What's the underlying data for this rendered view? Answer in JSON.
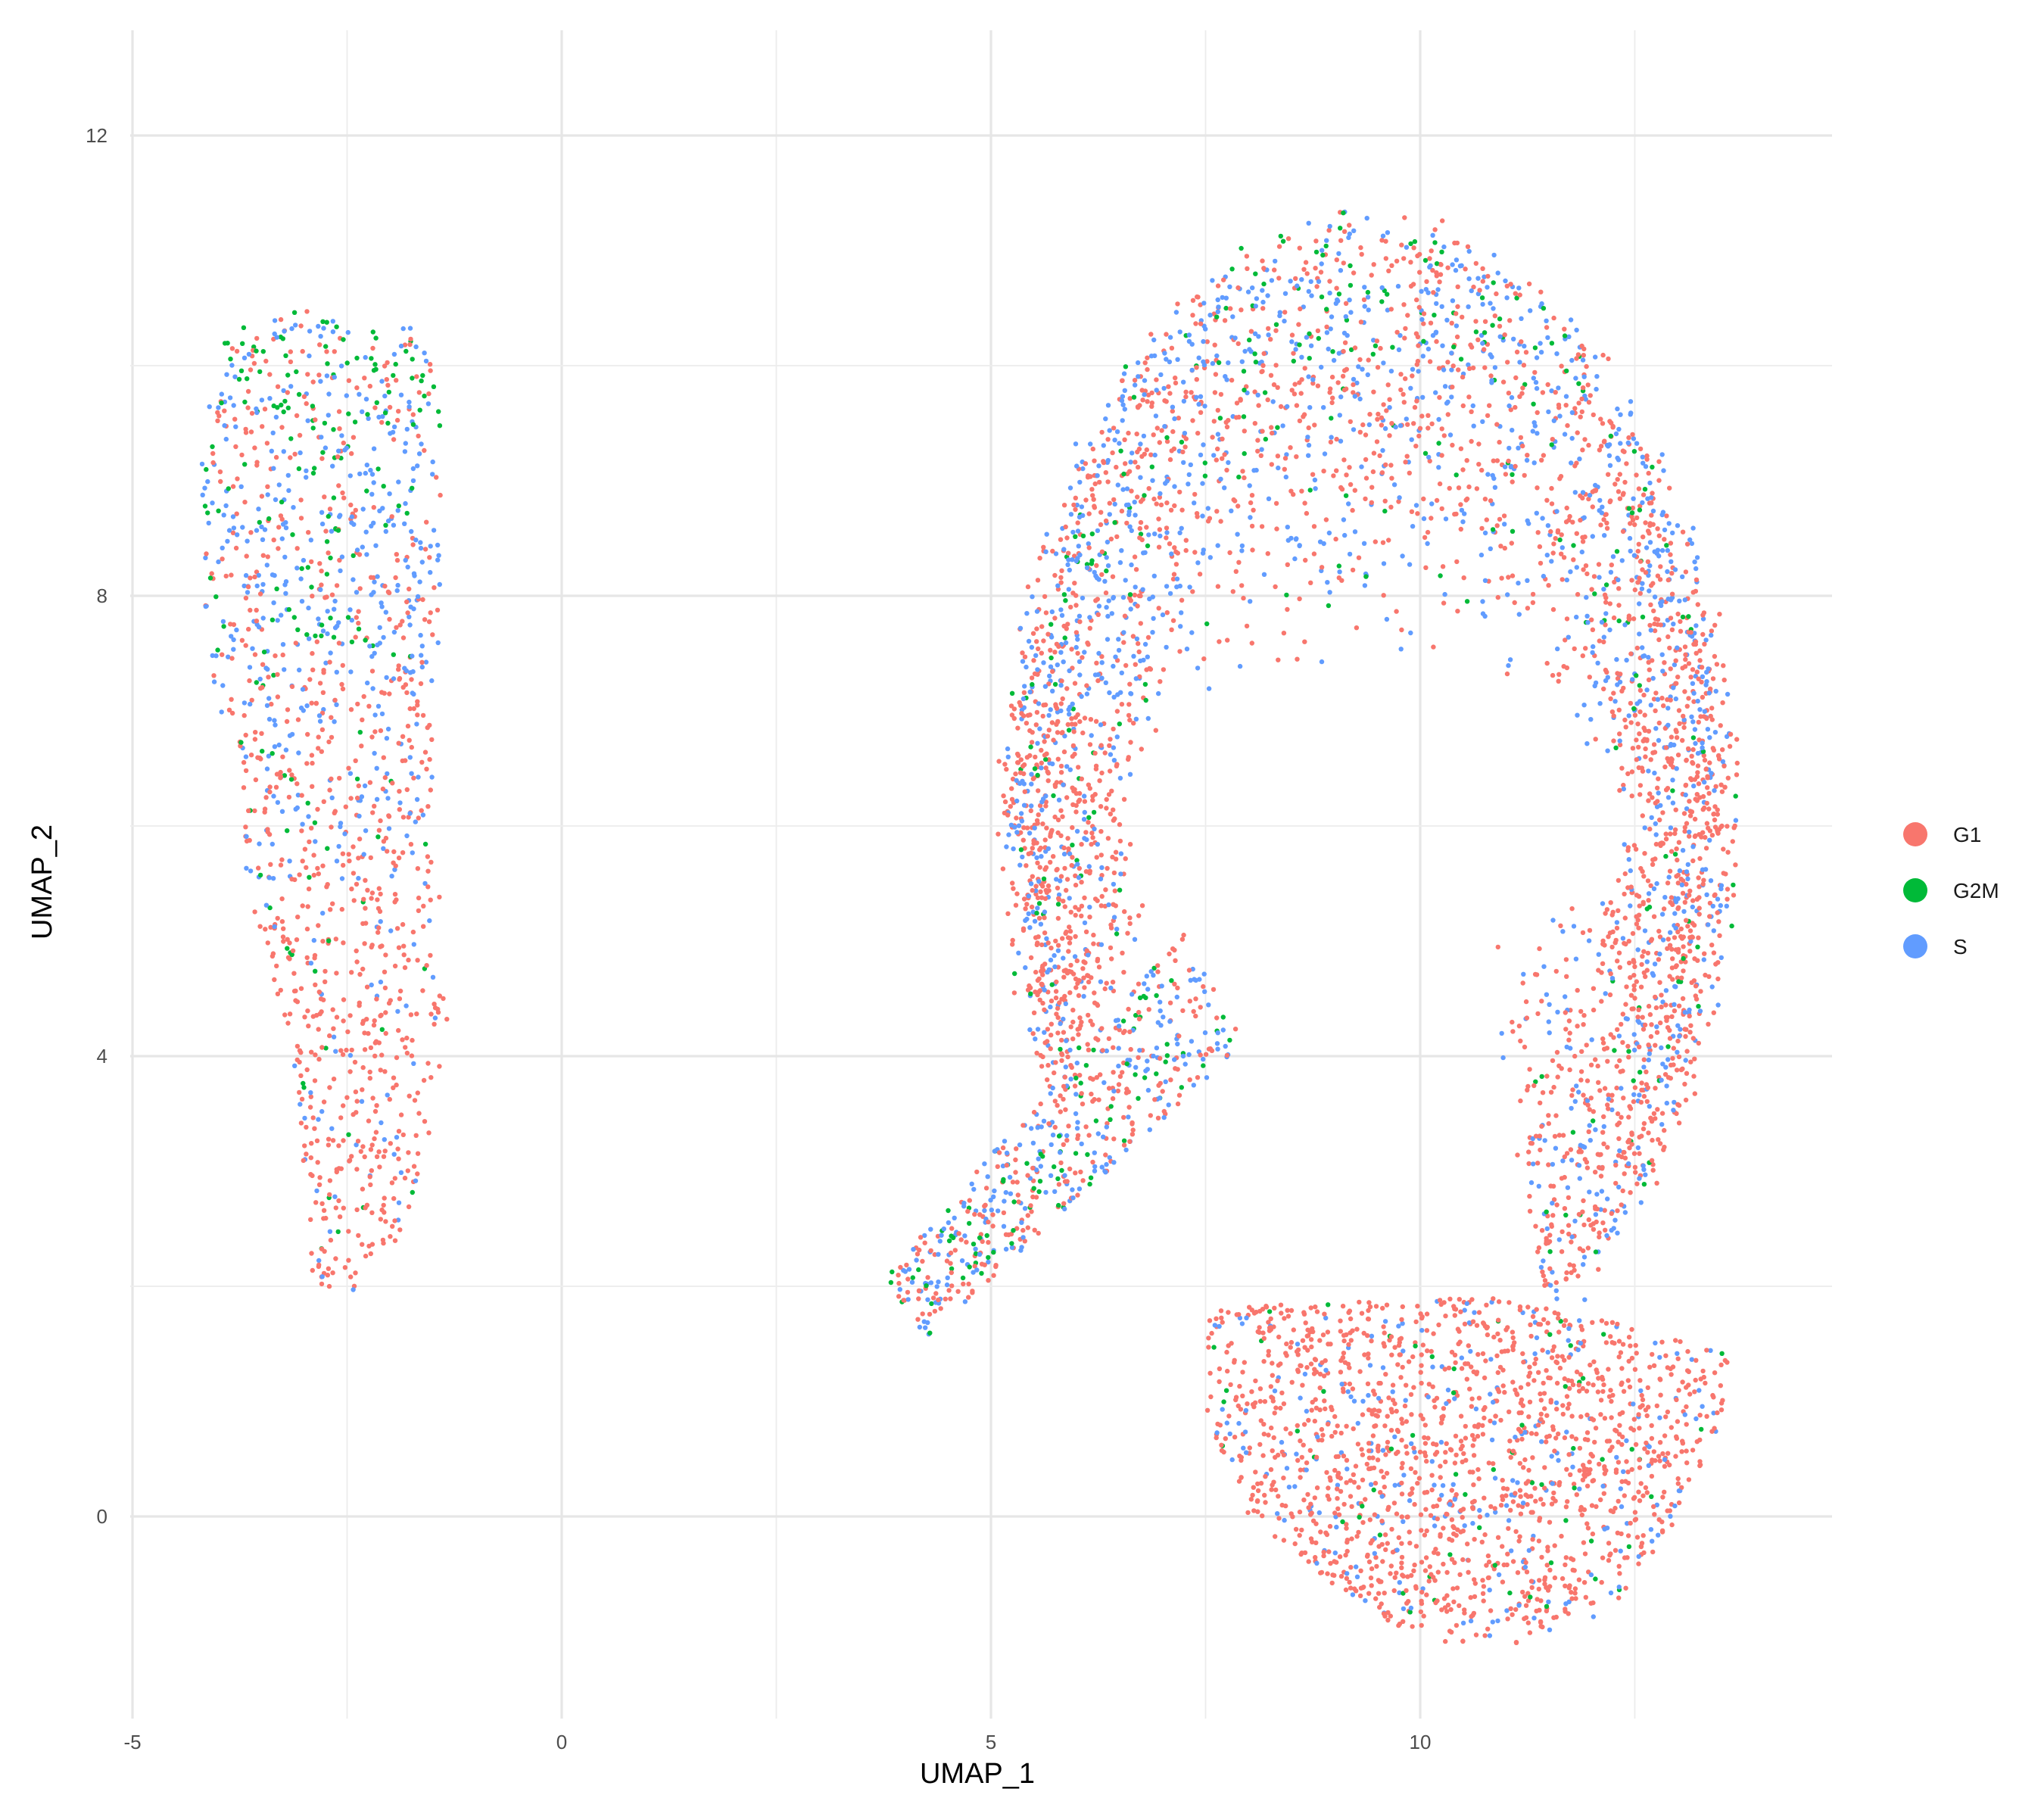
{
  "chart_data": {
    "type": "scatter",
    "title": "",
    "xlabel": "UMAP_1",
    "ylabel": "UMAP_2",
    "xlim": [
      -5,
      14.8
    ],
    "ylim": [
      -1.8,
      14
    ],
    "x_ticks": [
      -5,
      0,
      5,
      10
    ],
    "x_tick_labels": [
      "-5",
      "0",
      "5",
      "10"
    ],
    "y_ticks": [
      0,
      4,
      8,
      12
    ],
    "y_tick_labels": [
      "0",
      "4",
      "8",
      "12"
    ],
    "grid": true,
    "legend_position": "right",
    "series": [
      {
        "name": "G1",
        "color": "#F8766D"
      },
      {
        "name": "G2M",
        "color": "#00BA38"
      },
      {
        "name": "S",
        "color": "#619CFF"
      }
    ],
    "clusters": [
      {
        "shape": "polygon",
        "outline": [
          [
            -3.9,
            10.4
          ],
          [
            -2.7,
            10.5
          ],
          [
            -1.6,
            10.3
          ],
          [
            -1.4,
            9.5
          ],
          [
            -1.4,
            8.2
          ],
          [
            -1.5,
            6.6
          ],
          [
            -1.4,
            5.0
          ],
          [
            -1.3,
            4.3
          ],
          [
            -1.5,
            3.3
          ],
          [
            -1.9,
            2.4
          ],
          [
            -2.4,
            1.9
          ],
          [
            -2.9,
            2.0
          ],
          [
            -3.0,
            3.0
          ],
          [
            -3.2,
            4.2
          ],
          [
            -3.6,
            5.3
          ],
          [
            -3.9,
            6.6
          ],
          [
            -4.2,
            7.9
          ],
          [
            -4.2,
            9.3
          ]
        ],
        "n_points": 1400,
        "mix": [
          {
            "y_above": 9.4,
            "G1": 0.35,
            "G2M": 0.3,
            "S": 0.35
          },
          {
            "y_above": 7.5,
            "G1": 0.4,
            "G2M": 0.15,
            "S": 0.45
          },
          {
            "y_above": 5.5,
            "G1": 0.6,
            "G2M": 0.07,
            "S": 0.33
          },
          {
            "y_above": -99,
            "G1": 0.85,
            "G2M": 0.04,
            "S": 0.11
          }
        ]
      },
      {
        "shape": "ring",
        "center": [
          9.4,
          6.1
        ],
        "rx": [
          2.8,
          4.2
        ],
        "ry": [
          1.3,
          5.1
        ],
        "angle_range_deg": [
          -60,
          210
        ],
        "n_points": 3800,
        "mix": [
          {
            "y_above": 10.0,
            "G1": 0.4,
            "G2M": 0.15,
            "S": 0.45
          },
          {
            "y_above": 7.0,
            "G1": 0.55,
            "G2M": 0.06,
            "S": 0.39
          },
          {
            "y_above": -99,
            "G1": 0.7,
            "G2M": 0.04,
            "S": 0.26
          }
        ]
      },
      {
        "shape": "band",
        "start": [
          4.0,
          1.8
        ],
        "end": [
          7.6,
          4.6
        ],
        "width": 1.2,
        "n_points": 550,
        "mix": [
          {
            "y_above": -99,
            "G1": 0.45,
            "G2M": 0.15,
            "S": 0.4
          }
        ]
      },
      {
        "shape": "polygon",
        "outline": [
          [
            7.5,
            1.8
          ],
          [
            9.0,
            1.9
          ],
          [
            10.8,
            1.9
          ],
          [
            12.2,
            1.7
          ],
          [
            13.6,
            1.4
          ],
          [
            13.5,
            0.8
          ],
          [
            13.0,
            0.0
          ],
          [
            12.3,
            -0.8
          ],
          [
            11.3,
            -1.1
          ],
          [
            10.0,
            -1.1
          ],
          [
            9.0,
            -0.6
          ],
          [
            8.0,
            0.0
          ],
          [
            7.5,
            0.9
          ]
        ],
        "n_points": 1700,
        "mix": [
          {
            "y_above": -99,
            "G1": 0.82,
            "G2M": 0.03,
            "S": 0.15
          }
        ]
      }
    ]
  }
}
